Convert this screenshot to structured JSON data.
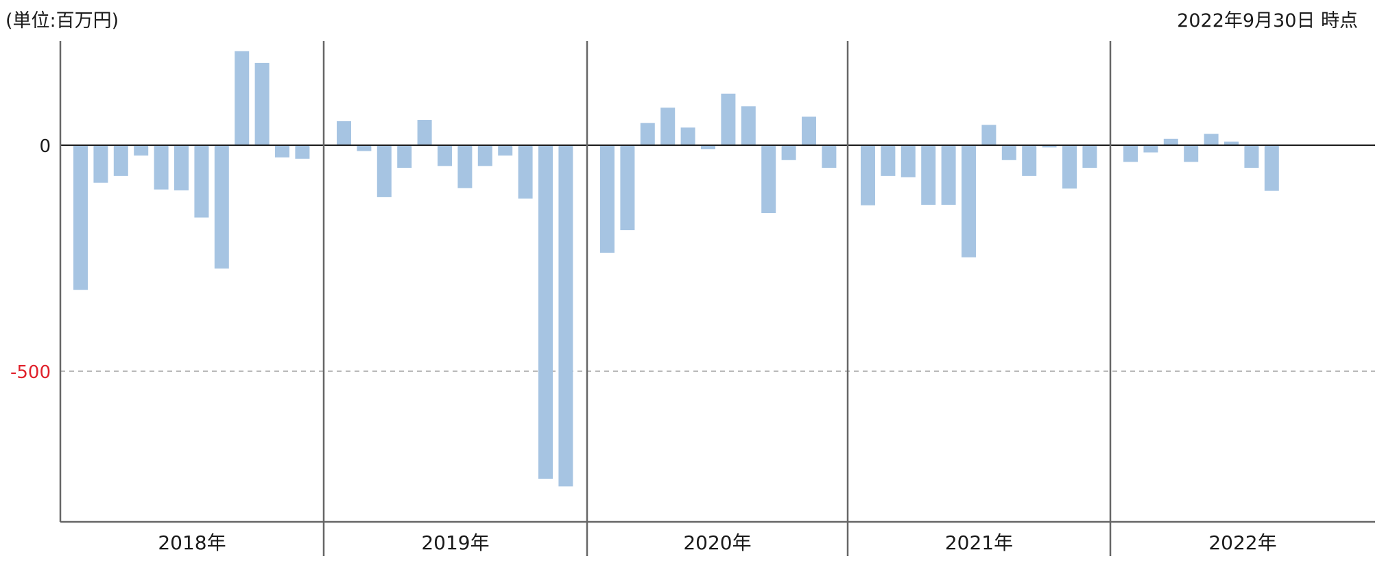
{
  "unit_label": "(単位:百万円)",
  "as_of_label": "2022年9月30日 時点",
  "colors": {
    "bar": "#a6c4e2",
    "axis": "#666666",
    "zero_line": "#1a1a1a",
    "negative_tick": "#e0202a",
    "grid_dashed": "#b8b8b8"
  },
  "chart_data": {
    "type": "bar",
    "ylim": [
      -830,
      210
    ],
    "y_ticks": [
      {
        "value": 0,
        "label": "0"
      },
      {
        "value": -500,
        "label": "-500"
      }
    ],
    "gridlines": [
      {
        "value": -500,
        "style": "dashed"
      }
    ],
    "groups": [
      {
        "label": "2018年",
        "values": [
          -320,
          -83,
          -68,
          -23,
          -98,
          -100,
          -160,
          -273,
          208,
          182,
          -27,
          -30
        ]
      },
      {
        "label": "2019年",
        "values": [
          53,
          -13,
          -115,
          -50,
          56,
          -46,
          -95,
          -46,
          -23,
          -118,
          -738,
          -755
        ]
      },
      {
        "label": "2020年",
        "values": [
          -238,
          -188,
          49,
          83,
          39,
          -9,
          114,
          86,
          -150,
          -33,
          63,
          -50
        ]
      },
      {
        "label": "2021年",
        "values": [
          -133,
          -68,
          -71,
          -132,
          -132,
          -248,
          45,
          -33,
          -68,
          -5,
          -96,
          -50
        ]
      },
      {
        "label": "2022年",
        "values": [
          -37,
          -16,
          14,
          -37,
          25,
          8,
          -50,
          -101
        ]
      }
    ]
  }
}
